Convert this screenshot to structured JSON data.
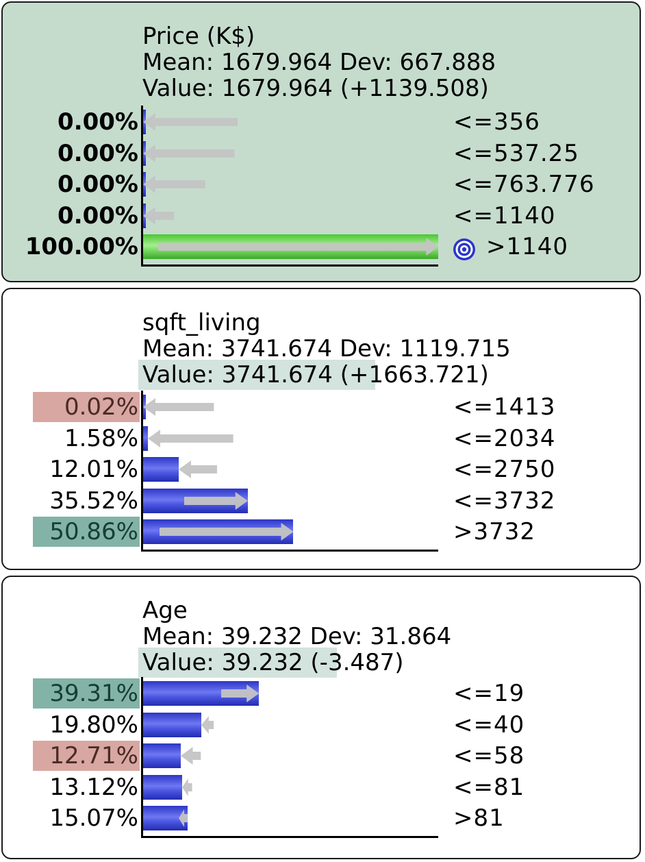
{
  "nodes": [
    {
      "id": "price",
      "name": "Price (K$)",
      "mean_dev": "Mean: 1679.964 Dev: 667.888",
      "value_label": "Value: 1679.964",
      "value_delta": "(+1139.508)",
      "observed": true,
      "value_highlight": false,
      "rows": [
        {
          "pct": "0.00%",
          "value": 0.0,
          "state": "<=356",
          "arrow_from": 32,
          "arrow_dir": "left",
          "pct_style": "bold"
        },
        {
          "pct": "0.00%",
          "value": 0.0,
          "state": "<=537.25",
          "arrow_from": 31,
          "arrow_dir": "left",
          "pct_style": "bold"
        },
        {
          "pct": "0.00%",
          "value": 0.0,
          "state": "<=763.776",
          "arrow_from": 21,
          "arrow_dir": "left",
          "pct_style": "bold"
        },
        {
          "pct": "0.00%",
          "value": 0.0,
          "state": "<=1140",
          "arrow_from": 10.5,
          "arrow_dir": "left",
          "pct_style": "bold"
        },
        {
          "pct": "100.00%",
          "value": 100.0,
          "state": ">1140",
          "arrow_from": 5,
          "arrow_dir": "right",
          "pct_style": "bold",
          "target_icon": "bullseye-icon"
        }
      ]
    },
    {
      "id": "sqft_living",
      "name": "sqft_living",
      "mean_dev": "Mean: 3741.674 Dev: 1119.715",
      "value_label": "Value: 3741.674",
      "value_delta": "(+1663.721)",
      "observed": false,
      "value_highlight": true,
      "rows": [
        {
          "pct": "0.02%",
          "value": 0.02,
          "state": "<=1413",
          "arrow_from": 24,
          "arrow_dir": "left",
          "pct_style": "hl-red"
        },
        {
          "pct": "1.58%",
          "value": 1.58,
          "state": "<=2034",
          "arrow_from": 30.5,
          "arrow_dir": "left",
          "pct_style": "plain"
        },
        {
          "pct": "12.01%",
          "value": 12.01,
          "state": "<=2750",
          "arrow_from": 25,
          "arrow_dir": "left",
          "pct_style": "plain"
        },
        {
          "pct": "35.52%",
          "value": 35.52,
          "state": "<=3732",
          "arrow_from": 14,
          "arrow_dir": "right",
          "pct_style": "plain"
        },
        {
          "pct": "50.86%",
          "value": 50.86,
          "state": ">3732",
          "arrow_from": 5.5,
          "arrow_dir": "right",
          "pct_style": "hl-teal"
        }
      ]
    },
    {
      "id": "age",
      "name": "Age",
      "mean_dev": "Mean: 39.232 Dev: 31.864",
      "value_label": "Value: 39.232",
      "value_delta": "(-3.487)",
      "observed": false,
      "value_highlight": true,
      "rows": [
        {
          "pct": "39.31%",
          "value": 39.31,
          "state": "<=19",
          "arrow_from": 26.5,
          "arrow_dir": "right",
          "pct_style": "hl-teal"
        },
        {
          "pct": "19.80%",
          "value": 19.8,
          "state": "<=40",
          "arrow_from": 24,
          "arrow_dir": "left",
          "pct_style": "plain"
        },
        {
          "pct": "12.71%",
          "value": 12.71,
          "state": "<=58",
          "arrow_from": 19.5,
          "arrow_dir": "left",
          "pct_style": "hl-red"
        },
        {
          "pct": "13.12%",
          "value": 13.12,
          "state": "<=81",
          "arrow_from": 16.5,
          "arrow_dir": "left",
          "pct_style": "plain"
        },
        {
          "pct": "15.07%",
          "value": 15.07,
          "state": ">81",
          "arrow_from": 12,
          "arrow_dir": "left",
          "pct_style": "plain"
        }
      ]
    }
  ],
  "chart_data": {
    "type": "bar",
    "colors": {
      "bar": "#3f4ad8",
      "observed_bar": "#6ad452",
      "arrow": "#c4c4c4",
      "observed_bg": "#c5dccd",
      "hl_red": "#d8a7a1",
      "hl_teal": "#83b3a6"
    },
    "xlim": [
      0,
      100
    ]
  }
}
